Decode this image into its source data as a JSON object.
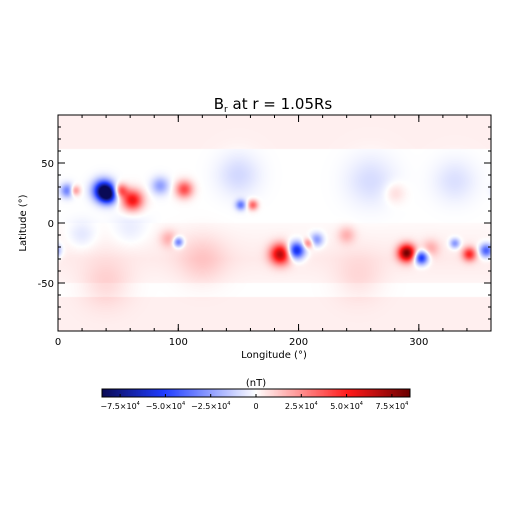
{
  "chart_data": {
    "type": "heatmap",
    "title_main": "B",
    "title_sub": "r",
    "title_rest": " at r = 1.05Rs",
    "xlabel": "Longitude (°)",
    "ylabel": "Latitude (°)",
    "xlim": [
      0,
      360
    ],
    "ylim": [
      -90,
      90
    ],
    "xticks": [
      0,
      100,
      200,
      300
    ],
    "yticks": [
      -50,
      0,
      50
    ],
    "colorbar": {
      "label": "(nT)",
      "range": [
        -8.5,
        8.5
      ],
      "ticks": [
        {
          "value": -7.5,
          "mant": "−7.5×10",
          "exp": "4"
        },
        {
          "value": -5.0,
          "mant": "−5.0×10",
          "exp": "4"
        },
        {
          "value": -2.5,
          "mant": "−2.5×10",
          "exp": "4"
        },
        {
          "value": 0,
          "mant": "0",
          "exp": ""
        },
        {
          "value": 2.5,
          "mant": "2.5×10",
          "exp": "4"
        },
        {
          "value": 5.0,
          "mant": "5.0×10",
          "exp": "4"
        },
        {
          "value": 7.5,
          "mant": "7.5×10",
          "exp": "4"
        }
      ],
      "colors": {
        "neg_max": "#0a0a55",
        "neg_mid": "#1f3cff",
        "zero": "#ffffff",
        "pos_mid": "#ff1a1a",
        "pos_max": "#6b0000"
      }
    },
    "background": {
      "polar_lat_min": 62,
      "polar_value": 0.35,
      "south_band_lat": -50,
      "south_band_value": 0.45
    },
    "features": [
      {
        "lon": 8,
        "lat": 27,
        "value": -3.5,
        "sigma": 4
      },
      {
        "lon": 14,
        "lat": 27,
        "value": 3.0,
        "sigma": 3
      },
      {
        "lon": 38,
        "lat": 27,
        "value": -8.5,
        "sigma": 6
      },
      {
        "lon": 42,
        "lat": 23,
        "value": -5.0,
        "sigma": 5
      },
      {
        "lon": 52,
        "lat": 27,
        "value": 4.0,
        "sigma": 4
      },
      {
        "lon": 62,
        "lat": 19,
        "value": 5.5,
        "sigma": 6
      },
      {
        "lon": 85,
        "lat": 31,
        "value": -2.5,
        "sigma": 5
      },
      {
        "lon": 105,
        "lat": 28,
        "value": 4.0,
        "sigma": 5
      },
      {
        "lon": 152,
        "lat": 15,
        "value": -3.5,
        "sigma": 3
      },
      {
        "lon": 162,
        "lat": 15,
        "value": 3.5,
        "sigma": 3
      },
      {
        "lon": 100,
        "lat": -16,
        "value": -4.0,
        "sigma": 3
      },
      {
        "lon": 92,
        "lat": -13,
        "value": 1.5,
        "sigma": 5
      },
      {
        "lon": 185,
        "lat": -26,
        "value": 6.5,
        "sigma": 6
      },
      {
        "lon": 198,
        "lat": -23,
        "value": -6.5,
        "sigma": 5
      },
      {
        "lon": 208,
        "lat": -17,
        "value": 3.0,
        "sigma": 3
      },
      {
        "lon": 215,
        "lat": -14,
        "value": -3.0,
        "sigma": 4
      },
      {
        "lon": 240,
        "lat": -10,
        "value": 1.5,
        "sigma": 5
      },
      {
        "lon": 290,
        "lat": -25,
        "value": 8.0,
        "sigma": 5
      },
      {
        "lon": 302,
        "lat": -29,
        "value": -6.0,
        "sigma": 4
      },
      {
        "lon": 310,
        "lat": -21,
        "value": 1.5,
        "sigma": 5
      },
      {
        "lon": 330,
        "lat": -17,
        "value": -3.0,
        "sigma": 3
      },
      {
        "lon": 342,
        "lat": -26,
        "value": 4.5,
        "sigma": 4
      },
      {
        "lon": 356,
        "lat": -23,
        "value": -4.5,
        "sigma": 4
      },
      {
        "lon": 150,
        "lat": 40,
        "value": -1.0,
        "sigma": 12
      },
      {
        "lon": 260,
        "lat": 35,
        "value": -0.9,
        "sigma": 14
      },
      {
        "lon": 330,
        "lat": 35,
        "value": -0.8,
        "sigma": 12
      },
      {
        "lon": 280,
        "lat": 25,
        "value": 0.9,
        "sigma": 6
      },
      {
        "lon": 40,
        "lat": -50,
        "value": 0.8,
        "sigma": 14
      },
      {
        "lon": 120,
        "lat": -30,
        "value": 0.9,
        "sigma": 14
      },
      {
        "lon": 250,
        "lat": -45,
        "value": 0.6,
        "sigma": 14
      },
      {
        "lon": 60,
        "lat": -5,
        "value": -0.6,
        "sigma": 10
      },
      {
        "lon": 20,
        "lat": -10,
        "value": -0.8,
        "sigma": 8
      }
    ]
  }
}
